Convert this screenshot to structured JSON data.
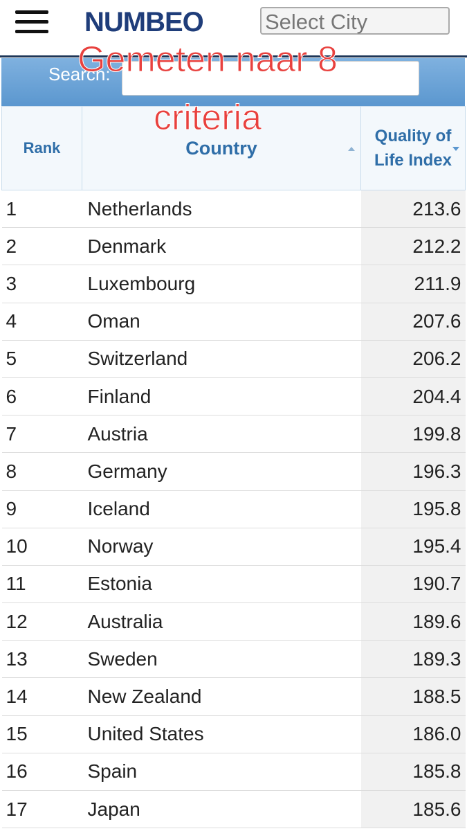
{
  "header": {
    "logo": "NUMBEO",
    "select_placeholder": "Select City"
  },
  "search": {
    "label": "Search:"
  },
  "overlay": {
    "lines": [
      "Gemeten naar 8",
      "criteria"
    ]
  },
  "table": {
    "columns": [
      "Rank",
      "Country",
      "Quality of Life Index"
    ],
    "rows": [
      [
        "1",
        "Netherlands",
        "213.6"
      ],
      [
        "2",
        "Denmark",
        "212.2"
      ],
      [
        "3",
        "Luxembourg",
        "211.9"
      ],
      [
        "4",
        "Oman",
        "207.6"
      ],
      [
        "5",
        "Switzerland",
        "206.2"
      ],
      [
        "6",
        "Finland",
        "204.4"
      ],
      [
        "7",
        "Austria",
        "199.8"
      ],
      [
        "8",
        "Germany",
        "196.3"
      ],
      [
        "9",
        "Iceland",
        "195.8"
      ],
      [
        "10",
        "Norway",
        "195.4"
      ],
      [
        "11",
        "Estonia",
        "190.7"
      ],
      [
        "12",
        "Australia",
        "189.6"
      ],
      [
        "13",
        "Sweden",
        "189.3"
      ],
      [
        "14",
        "New Zealand",
        "188.5"
      ],
      [
        "15",
        "United States",
        "186.0"
      ],
      [
        "16",
        "Spain",
        "185.8"
      ],
      [
        "17",
        "Japan",
        "185.6"
      ]
    ]
  }
}
